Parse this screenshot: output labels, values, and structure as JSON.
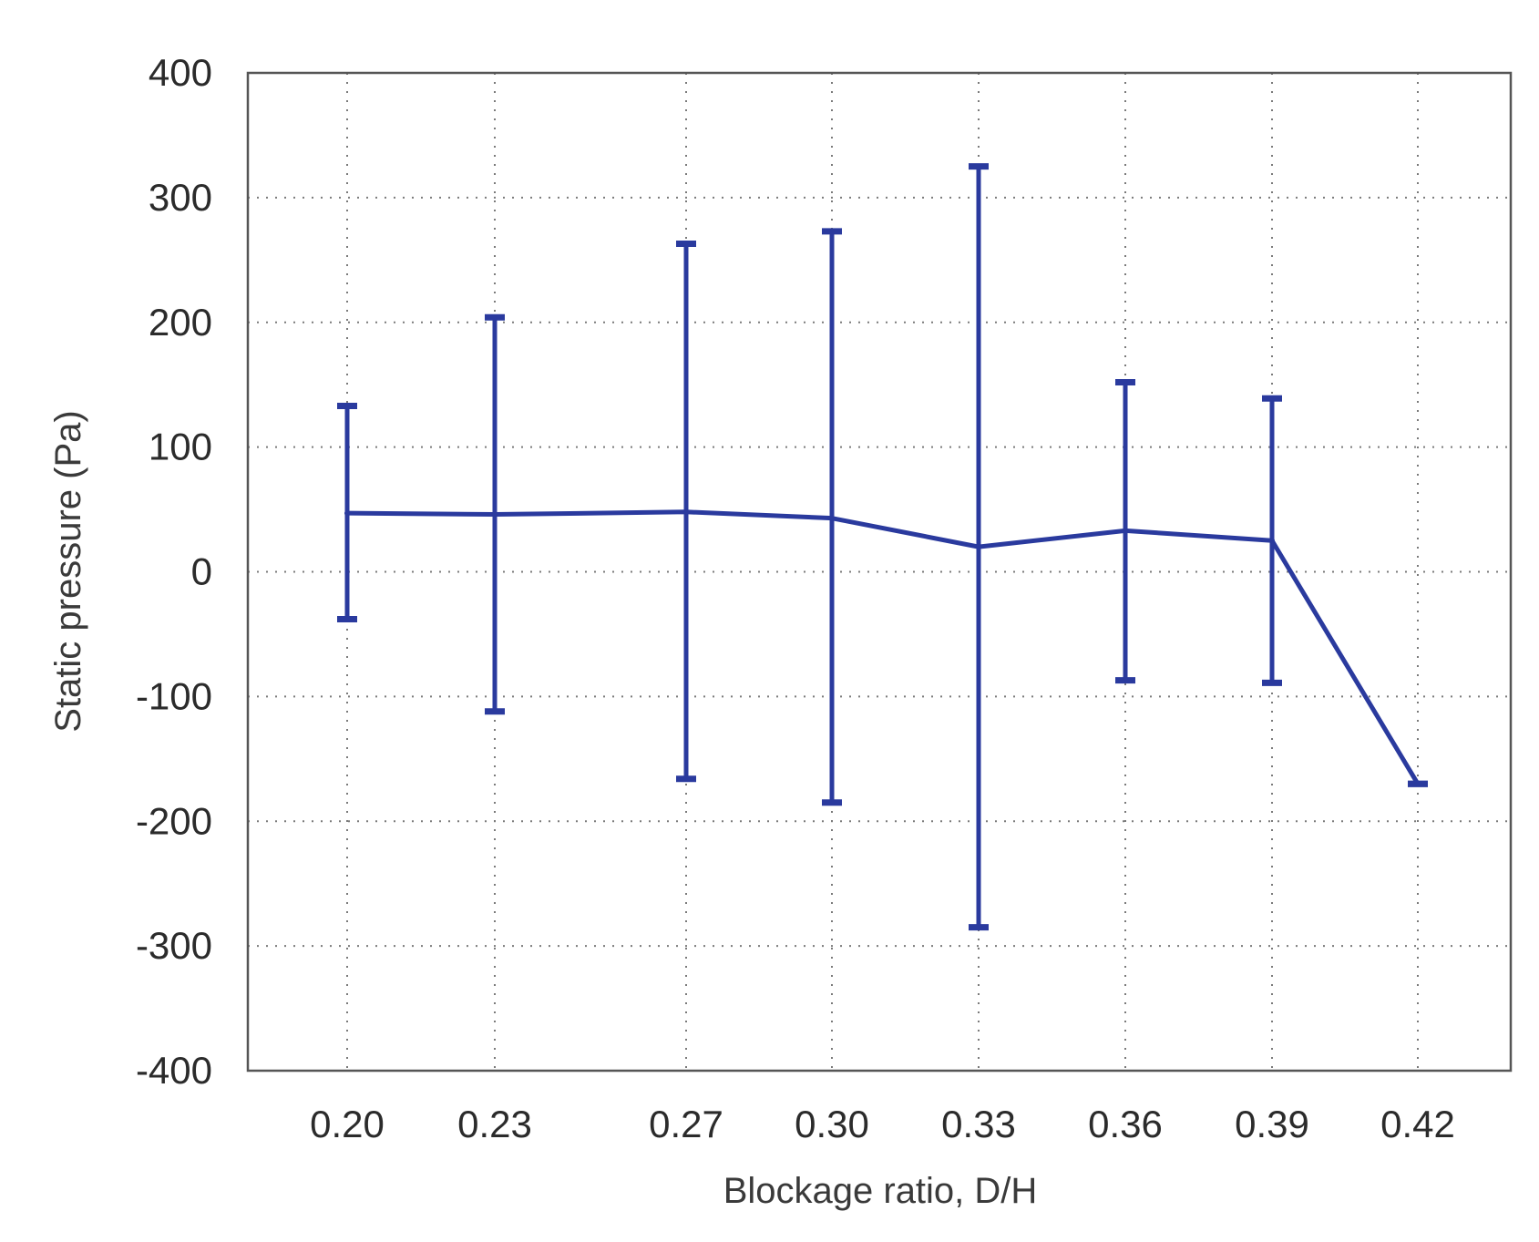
{
  "chart_data": {
    "type": "line",
    "xlabel": "Blockage ratio, D/H",
    "ylabel": "Static pressure (Pa)",
    "x": [
      0.2,
      0.23,
      0.27,
      0.3,
      0.33,
      0.36,
      0.39,
      0.42
    ],
    "x_tick_labels": [
      "0.20",
      "0.23",
      "0.27",
      "0.30",
      "0.33",
      "0.36",
      "0.39",
      "0.42"
    ],
    "y_ticks": [
      400,
      300,
      200,
      100,
      0,
      -100,
      -200,
      -300,
      -400
    ],
    "y_tick_labels": [
      "400",
      "300",
      "200",
      "100",
      "0",
      "-100",
      "-200",
      "-300",
      "-400"
    ],
    "ylim": [
      -400,
      400
    ],
    "xlim": [
      0.18,
      0.44
    ],
    "grid": true,
    "series": [
      {
        "values": [
          47,
          46,
          48,
          43,
          20,
          33,
          25,
          -170
        ],
        "error_upper": [
          133,
          204,
          263,
          273,
          325,
          152,
          139,
          -170
        ],
        "error_lower": [
          -38,
          -112,
          -166,
          -185,
          -285,
          -87,
          -89,
          -170
        ],
        "color": "#2a3a9e"
      }
    ]
  }
}
